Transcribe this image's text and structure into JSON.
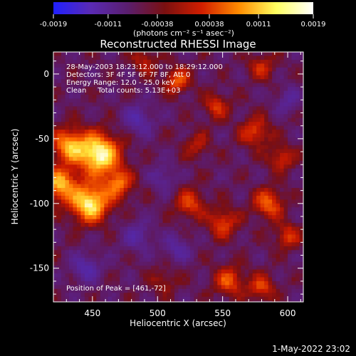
{
  "chart_data": {
    "type": "heatmap",
    "title": "Reconstructed RHESSI Image",
    "xlabel": "Heliocentric X (arcsec)",
    "ylabel": "Heliocentric Y (arcsec)",
    "xlim": [
      420,
      612
    ],
    "ylim": [
      -176,
      17
    ],
    "x_ticks": [
      450,
      500,
      550,
      600
    ],
    "y_ticks": [
      0,
      -50,
      -100,
      -150
    ],
    "colorbar": {
      "ticks": [
        "-0.0019",
        "-0.0011",
        "-0.00038",
        "0.00038",
        "0.0011",
        "0.0019"
      ],
      "tick_values": [
        -0.0019,
        -0.0011,
        -0.00038,
        0.00038,
        0.0011,
        0.0019
      ],
      "unit_label": "(photons cm⁻² s⁻¹ asec⁻²)",
      "stops": [
        "#2020ff",
        "#5a2ab4",
        "#5a1e6e",
        "#7a1010",
        "#d21e00",
        "#ff8c00",
        "#ffff60",
        "#ffffff"
      ]
    },
    "annotations": [
      "28-May-2003 18:23:12.000 to 18:29:12.000",
      "Detectors: 3F 4F 5F 6F 7F 8F, Att 0",
      "Energy Range: 12.0 - 25.0 keV",
      "Clean     Total counts: 5.13E+03"
    ],
    "peak_label": "Position of Peak = [461,-72]",
    "peak": [
      461,
      -72
    ],
    "sources": [
      {
        "x": 455,
        "y": -62,
        "amp": 1.0,
        "r": 11
      },
      {
        "x": 448,
        "y": -100,
        "amp": 0.95,
        "r": 10
      },
      {
        "x": 432,
        "y": -55,
        "amp": 0.7,
        "r": 9
      },
      {
        "x": 425,
        "y": -85,
        "amp": 0.75,
        "r": 9
      },
      {
        "x": 470,
        "y": -85,
        "amp": 0.55,
        "r": 8
      },
      {
        "x": 515,
        "y": -5,
        "amp": 0.5,
        "r": 7
      },
      {
        "x": 545,
        "y": -25,
        "amp": 0.4,
        "r": 7
      },
      {
        "x": 575,
        "y": -45,
        "amp": 0.45,
        "r": 8
      },
      {
        "x": 595,
        "y": -65,
        "amp": 0.4,
        "r": 7
      },
      {
        "x": 580,
        "y": 5,
        "amp": 0.35,
        "r": 7
      },
      {
        "x": 525,
        "y": -100,
        "amp": 0.45,
        "r": 8
      },
      {
        "x": 550,
        "y": -115,
        "amp": 0.45,
        "r": 8
      },
      {
        "x": 585,
        "y": -100,
        "amp": 0.55,
        "r": 8
      },
      {
        "x": 600,
        "y": -125,
        "amp": 0.4,
        "r": 7
      },
      {
        "x": 555,
        "y": -160,
        "amp": 0.5,
        "r": 8
      },
      {
        "x": 580,
        "y": -165,
        "amp": 0.45,
        "r": 7
      },
      {
        "x": 505,
        "y": -160,
        "amp": 0.25,
        "r": 7
      },
      {
        "x": 490,
        "y": 10,
        "amp": 0.3,
        "r": 7
      },
      {
        "x": 530,
        "y": -55,
        "amp": 0.3,
        "r": 7
      },
      {
        "x": 445,
        "y": -150,
        "amp": -0.35,
        "r": 8
      },
      {
        "x": 485,
        "y": -125,
        "amp": -0.3,
        "r": 8
      },
      {
        "x": 485,
        "y": -35,
        "amp": -0.35,
        "r": 8
      },
      {
        "x": 505,
        "y": -80,
        "amp": -0.25,
        "r": 7
      },
      {
        "x": 600,
        "y": -20,
        "amp": -0.25,
        "r": 7
      },
      {
        "x": 515,
        "y": -135,
        "amp": -0.3,
        "r": 7
      }
    ]
  },
  "footer": {
    "timestamp": "1-May-2022 23:02"
  }
}
